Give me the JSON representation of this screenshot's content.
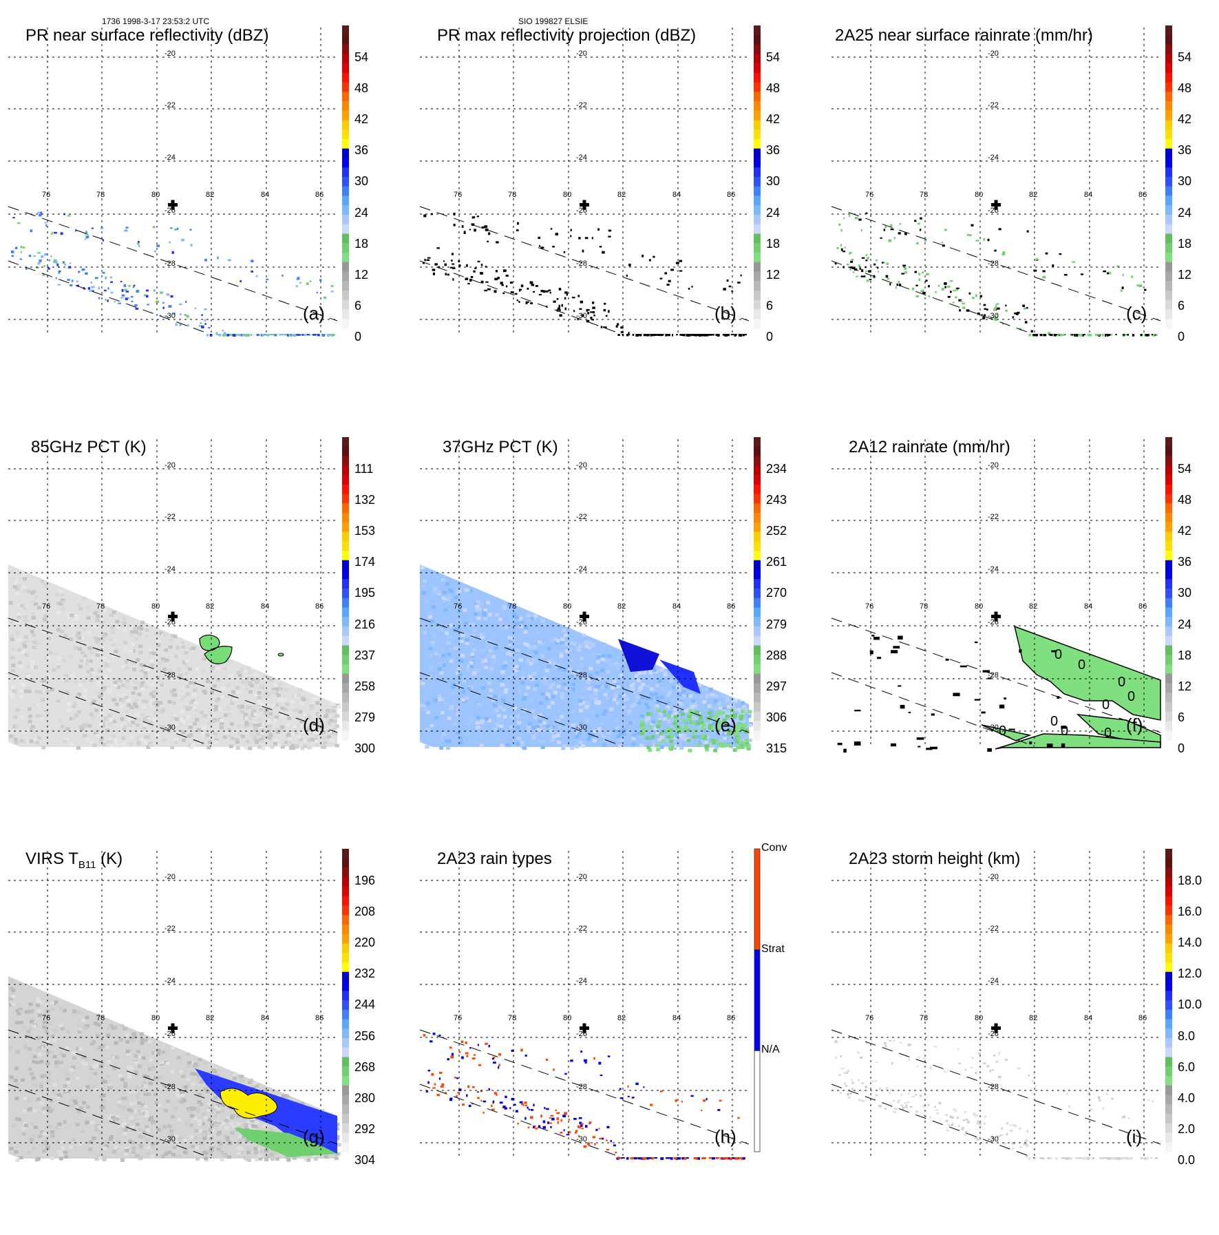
{
  "header": {
    "left": "1736 1998-3-17 23:53:2 UTC",
    "center": "SIO 199827 ELSIE"
  },
  "chart_data": [
    {
      "type": "heatmap",
      "id": "a",
      "panel_label": "(a)",
      "title": "PR near surface reflectivity (dBZ)",
      "colorbar": {
        "ticks": [
          "54",
          "48",
          "42",
          "36",
          "30",
          "24",
          "18",
          "12",
          "6",
          "0"
        ],
        "range": [
          0,
          60
        ]
      },
      "field": "sparse swath echoes along narrow PR swath, mostly 18-30 dBZ, densest near 85-86E, -30S"
    },
    {
      "type": "heatmap",
      "id": "b",
      "panel_label": "(b)",
      "title": "PR max reflectivity projection (dBZ)",
      "colorbar": {
        "ticks": [
          "54",
          "48",
          "42",
          "36",
          "30",
          "24",
          "18",
          "12",
          "6",
          "0"
        ],
        "range": [
          0,
          60
        ]
      },
      "field": "contoured small cells along PR swath, max blue 24-30 near 86E"
    },
    {
      "type": "heatmap",
      "id": "c",
      "panel_label": "(c)",
      "title": "2A25 near surface rainrate (mm/hr)",
      "colorbar": {
        "ticks": [
          "54",
          "48",
          "42",
          "36",
          "30",
          "24",
          "18",
          "12",
          "6",
          "0"
        ],
        "range": [
          0,
          60
        ]
      },
      "field": "light rain 0-6 mm/hr along PR swath"
    },
    {
      "type": "heatmap",
      "id": "d",
      "panel_label": "(d)",
      "title": "85GHz PCT (K)",
      "colorbar": {
        "ticks": [
          "111",
          "132",
          "153",
          "174",
          "195",
          "216",
          "237",
          "258",
          "279",
          "300"
        ],
        "range": [
          300,
          90
        ]
      },
      "field": "mostly 270-300K grey; small 237-258K areas near 83E -26.5S"
    },
    {
      "type": "heatmap",
      "id": "e",
      "panel_label": "(e)",
      "title": "37GHz PCT (K)",
      "colorbar": {
        "ticks": [
          "234",
          "243",
          "252",
          "261",
          "270",
          "279",
          "288",
          "297",
          "306",
          "315"
        ],
        "range": [
          315,
          225
        ]
      },
      "field": "mostly 279-288K blue; 261-270K near 83-86E -26.5S; 288-297K green near 84-86E -29.5S"
    },
    {
      "type": "heatmap",
      "id": "f",
      "panel_label": "(f)",
      "title": "2A12 rainrate (mm/hr)",
      "colorbar": {
        "ticks": [
          "54",
          "48",
          "42",
          "36",
          "30",
          "24",
          "18",
          "12",
          "6",
          "0"
        ],
        "range": [
          0,
          60
        ]
      },
      "field": "0-6 mm/hr rain bands with 0 contours, NE part of swath"
    },
    {
      "type": "heatmap",
      "id": "g",
      "panel_label": "(g)",
      "title": "VIRS T",
      "title_sub": "B11",
      "title_suffix": " (K)",
      "colorbar": {
        "ticks": [
          "196",
          "208",
          "220",
          "232",
          "244",
          "256",
          "268",
          "280",
          "292",
          "304"
        ],
        "range": [
          304,
          184
        ]
      },
      "field": "grey 280-304K; cold cloud 232-256K (yellow/blue) near 83-87E -26.5 to -29S"
    },
    {
      "type": "heatmap",
      "id": "h",
      "panel_label": "(h)",
      "title": "2A23 rain types",
      "colorbar": {
        "categorical": true,
        "ticks": [
          "Conv",
          "Strat",
          "N/A"
        ],
        "colors": [
          "#ff4400",
          "#0000ee",
          "#ffffff"
        ]
      },
      "field": "convective (orange) and stratiform (blue) pixels along PR swath"
    },
    {
      "type": "heatmap",
      "id": "i",
      "panel_label": "(i)",
      "title": "2A23 storm height (km)",
      "colorbar": {
        "ticks": [
          "18.0",
          "16.0",
          "14.0",
          "12.0",
          "10.0",
          "8.0",
          "6.0",
          "4.0",
          "2.0",
          "0.0"
        ],
        "range": [
          0,
          20
        ]
      },
      "field": "storm heights mostly 0-2 km along PR swath"
    }
  ],
  "axes": {
    "lon_ticks": [
      "76",
      "78",
      "80",
      "82",
      "84",
      "86"
    ],
    "lat_ticks": [
      "-20",
      "-22",
      "-24",
      "-26",
      "-28",
      "-30"
    ],
    "center_marker": "cross-icon"
  },
  "colors": {
    "scale": [
      "#f5f5f5",
      "#e8e8e8",
      "#d8d8d8",
      "#c8c8c8",
      "#b8b8b8",
      "#a8a8a8",
      "#989898",
      "#80e080",
      "#70d070",
      "#60c060",
      "#ccd8ff",
      "#a8c8ff",
      "#80b8ff",
      "#58a8ff",
      "#4080ff",
      "#3050ff",
      "#2030ff",
      "#0000ee",
      "#0000d0",
      "#ffff00",
      "#ffe000",
      "#ffcc00",
      "#ffa000",
      "#ff8800",
      "#ff6600",
      "#ff3300",
      "#ff1100",
      "#dd0000",
      "#bb0000",
      "#8b0e0e",
      "#5c1010",
      "#5a1a1a"
    ]
  }
}
